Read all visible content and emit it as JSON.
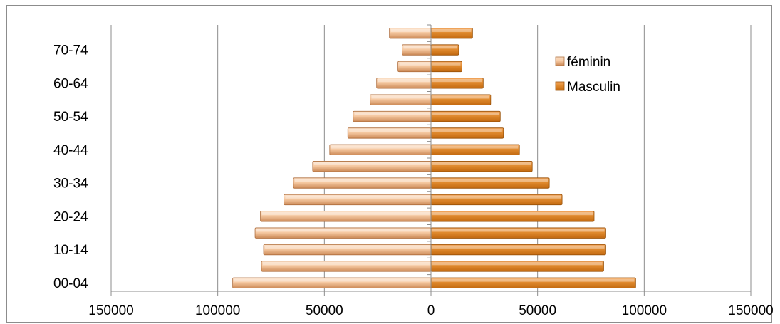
{
  "chart_data": {
    "type": "bar",
    "orientation": "horizontal",
    "title": "",
    "xlabel": "",
    "ylabel": "",
    "xlim": [
      -150000,
      150000
    ],
    "x_ticks": [
      -150000,
      -100000,
      -50000,
      0,
      50000,
      100000,
      150000
    ],
    "x_tick_labels": [
      "150000",
      "100000",
      "50000",
      "0",
      "50000",
      "100000",
      "150000"
    ],
    "categories": [
      "00-04",
      "05-09",
      "10-14",
      "15-19",
      "20-24",
      "25-29",
      "30-34",
      "35-39",
      "40-44",
      "45-49",
      "50-54",
      "55-59",
      "60-64",
      "65-69",
      "70-74",
      "75+"
    ],
    "visible_category_labels": [
      "00-04",
      "10-14",
      "20-24",
      "30-34",
      "40-44",
      "50-54",
      "60-64",
      "70-74"
    ],
    "series": [
      {
        "name": "féminin",
        "side": "left",
        "values": [
          93000,
          79500,
          78500,
          82500,
          80000,
          69000,
          64500,
          55500,
          47500,
          39000,
          36500,
          28500,
          25500,
          15500,
          13500,
          19500
        ]
      },
      {
        "name": "Masculin",
        "side": "right",
        "values": [
          96000,
          81000,
          82000,
          82000,
          76500,
          61500,
          55500,
          47500,
          41500,
          34000,
          32500,
          28000,
          24500,
          14500,
          13000,
          19500
        ]
      }
    ],
    "gridlines": true,
    "legend_position": "top-right"
  },
  "colors": {
    "feminin_light": "#fbe0c8",
    "feminin_dark": "#cc8a57",
    "masculin_light": "#f2a65e",
    "masculin_dark": "#c26910",
    "gridline": "#8c8c8c",
    "axis": "#8c8c8c"
  }
}
